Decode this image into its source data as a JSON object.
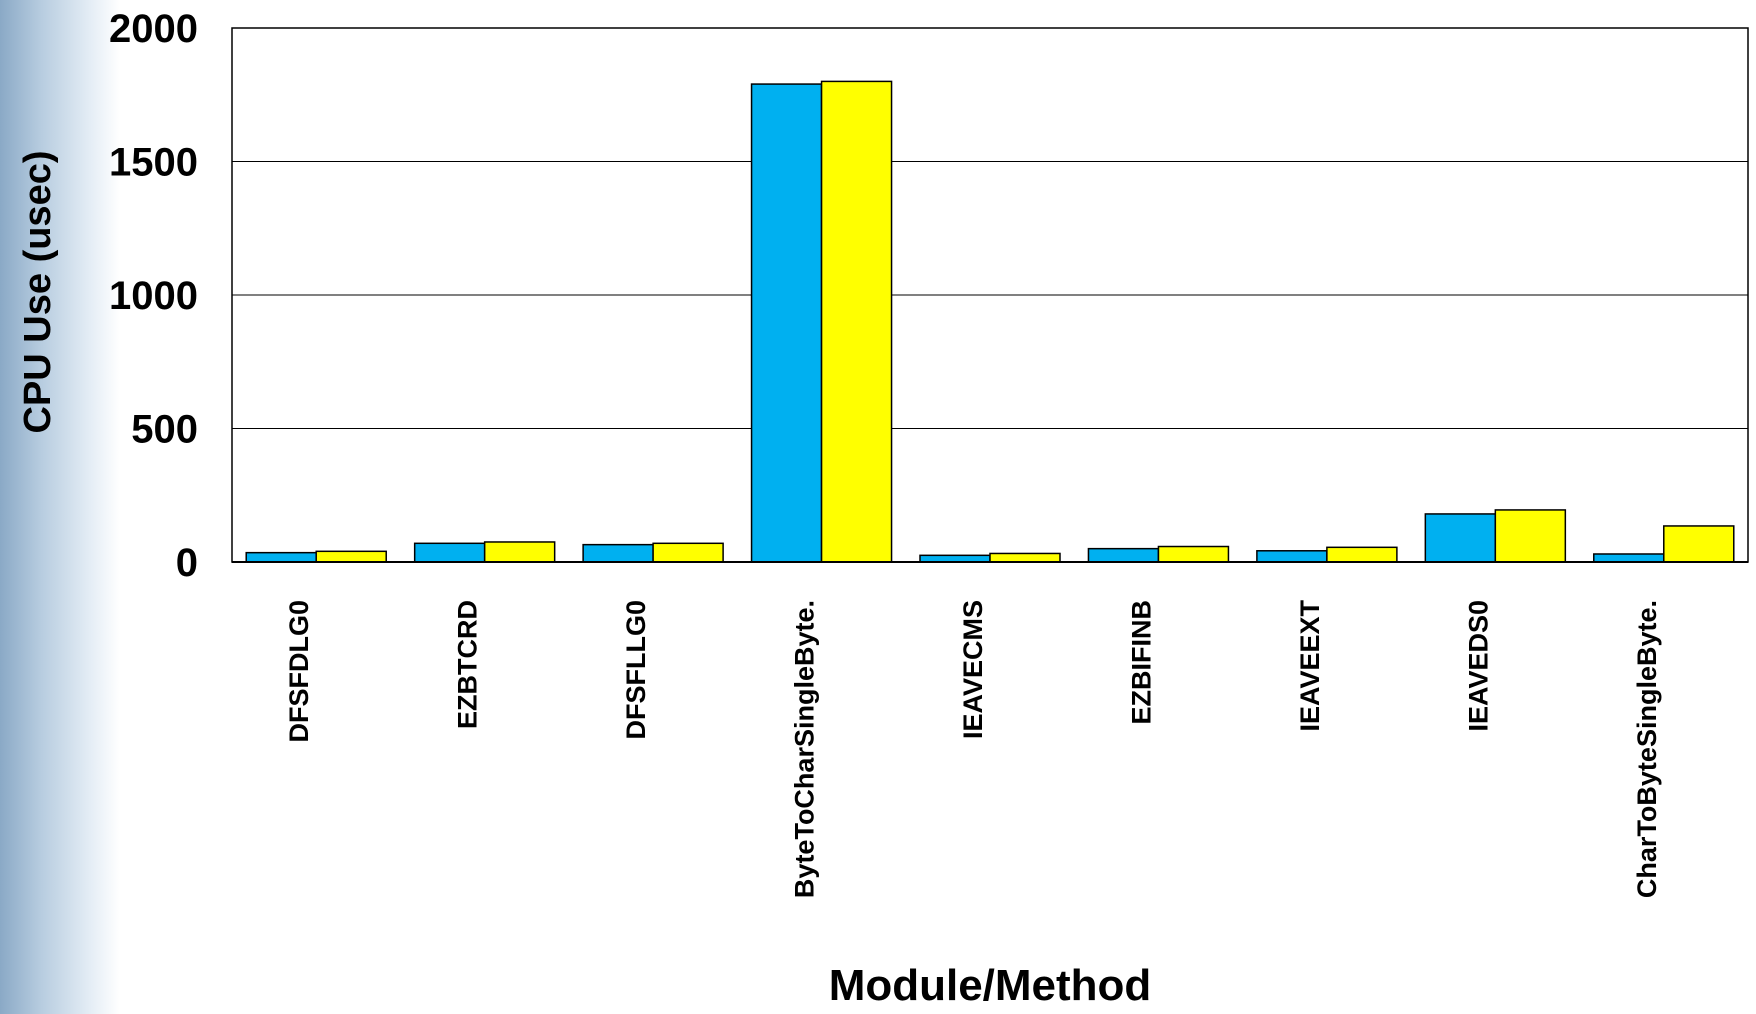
{
  "colors": {
    "series_a": "#00b0f0",
    "series_b": "#ffff00",
    "grid": "#000000",
    "background": "#ffffff",
    "side_strip": "#a9c2da"
  },
  "chart_data": {
    "type": "bar",
    "title": "",
    "xlabel": "Module/Method",
    "ylabel": "CPU Use (usec)",
    "ylim": [
      0,
      2000
    ],
    "yticks": [
      0,
      500,
      1000,
      1500,
      2000
    ],
    "grid": true,
    "legend": "none",
    "categories": [
      "DFSFDLG0",
      "EZBTCRD",
      "DFSFLLG0",
      "ByteToCharSingleByte.",
      "IEAVECMS",
      "EZBIFINB",
      "IEAVEEXT",
      "IEAVEDS0",
      "CharToByteSingleByte."
    ],
    "series": [
      {
        "values": [
          35,
          70,
          65,
          1790,
          25,
          50,
          42,
          180,
          30
        ],
        "color": "#00b0f0"
      },
      {
        "values": [
          40,
          75,
          70,
          1800,
          32,
          58,
          55,
          195,
          135
        ],
        "color": "#ffff00"
      }
    ]
  }
}
